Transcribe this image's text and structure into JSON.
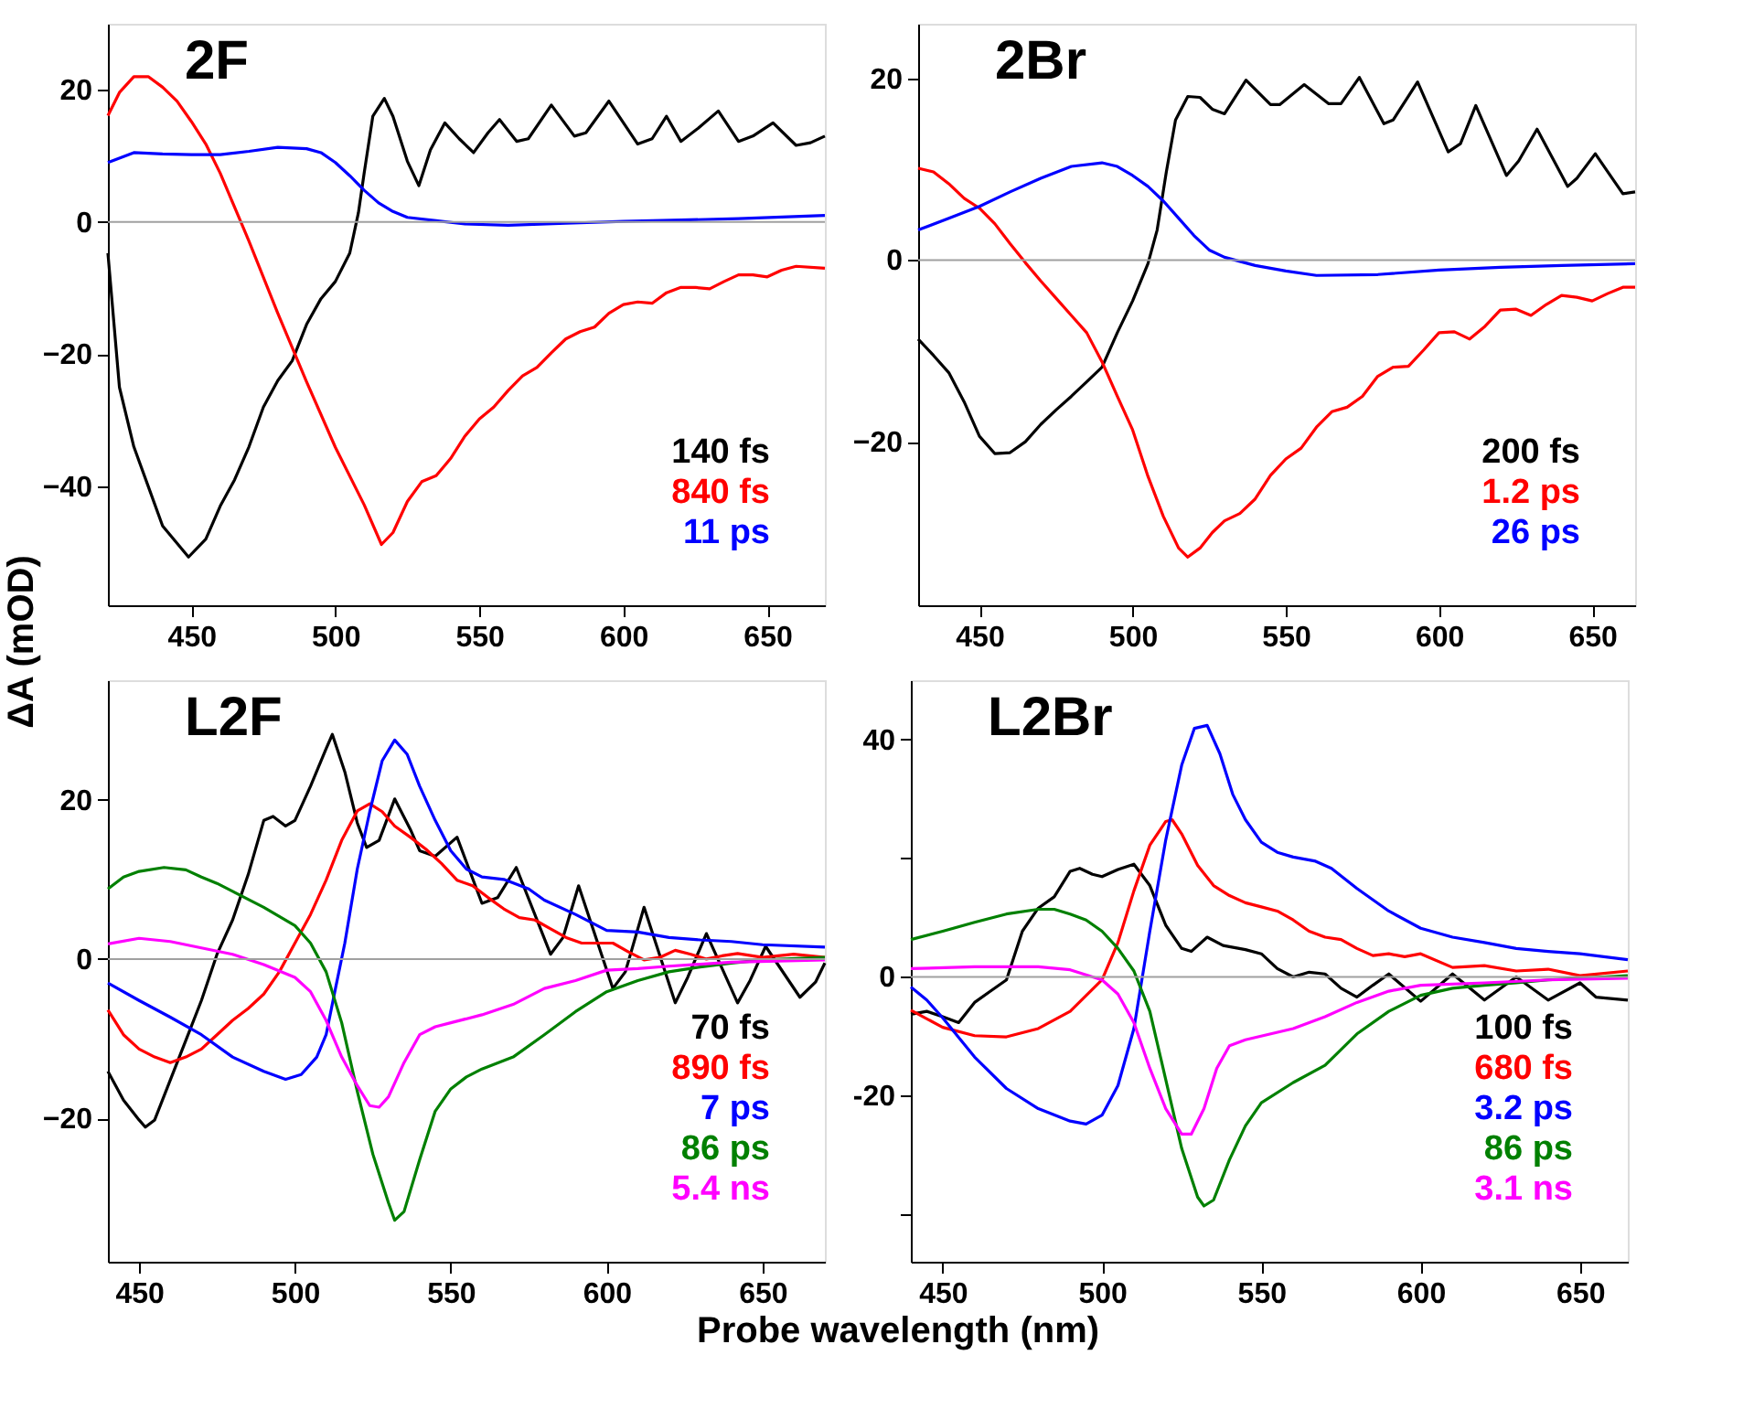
{
  "chart_data": [
    {
      "type": "line",
      "title": "2F",
      "ylabel": "ΔA (mOD)",
      "xlim": [
        421,
        670
      ],
      "ylim": [
        -58,
        30
      ],
      "xticks": [
        450,
        500,
        550,
        600,
        650
      ],
      "yticks": [
        20,
        0,
        -20,
        -40
      ],
      "grid": false,
      "legend": "bottom right",
      "line_style": "solid",
      "ref_lines": [
        {
          "axis": "y",
          "value": 0,
          "color": "#a0a0a0"
        }
      ],
      "series": [
        {
          "name": "140 fs",
          "color": "#000000",
          "x": [
            421,
            425,
            430,
            435,
            440,
            449,
            455,
            460,
            465,
            470,
            475,
            480,
            485,
            490,
            495,
            500,
            505,
            508,
            510,
            513,
            517,
            520,
            525,
            529,
            533,
            538,
            543,
            548,
            553,
            557,
            563,
            567,
            575,
            583,
            587,
            595,
            605,
            610,
            615,
            620,
            626,
            633,
            640,
            645,
            652,
            660,
            665,
            670
          ],
          "values": [
            -4.7,
            -25,
            -34,
            -40,
            -46,
            -50.7,
            -48,
            -43,
            -39,
            -34,
            -28,
            -24,
            -21,
            -15.5,
            -11.6,
            -9,
            -4.7,
            1.4,
            7.4,
            16,
            18.7,
            16,
            9.2,
            5.5,
            10.9,
            15,
            12.6,
            10.5,
            13.5,
            15.5,
            12.2,
            12.6,
            17.7,
            13,
            13.5,
            18.3,
            11.8,
            12.6,
            16,
            12.2,
            14.2,
            16.8,
            12.2,
            13,
            15,
            11.6,
            12,
            13
          ]
        },
        {
          "name": "840 fs",
          "color": "#ff0000",
          "x": [
            421,
            425,
            430,
            435,
            440,
            445,
            450,
            455,
            460,
            470,
            480,
            490,
            500,
            510,
            516,
            520,
            525,
            530,
            535,
            540,
            545,
            550,
            555,
            560,
            565,
            570,
            575,
            580,
            585,
            590,
            595,
            600,
            605,
            610,
            615,
            620,
            625,
            630,
            635,
            640,
            645,
            650,
            655,
            660,
            670
          ],
          "values": [
            16.1,
            19.6,
            22,
            22,
            20.4,
            18.3,
            15.2,
            11.8,
            7.4,
            -2.9,
            -13.8,
            -24.2,
            -34.1,
            -42.8,
            -48.8,
            -47,
            -42.3,
            -39.3,
            -38.4,
            -35.8,
            -32.4,
            -29.8,
            -28,
            -25.5,
            -23.3,
            -22,
            -19.8,
            -17.7,
            -16.6,
            -15.9,
            -13.8,
            -12.5,
            -12.1,
            -12.3,
            -10.7,
            -9.9,
            -9.9,
            -10.1,
            -9,
            -8,
            -8,
            -8.3,
            -7.3,
            -6.7,
            -7
          ]
        },
        {
          "name": "11 ps",
          "color": "#0000ff",
          "x": [
            421,
            430,
            440,
            450,
            460,
            470,
            480,
            490,
            495,
            500,
            505,
            510,
            515,
            520,
            525,
            535,
            545,
            560,
            580,
            600,
            620,
            640,
            670
          ],
          "values": [
            9,
            10.5,
            10.3,
            10.2,
            10.2,
            10.7,
            11.3,
            11.1,
            10.5,
            9,
            7,
            4.8,
            2.9,
            1.6,
            0.7,
            0.2,
            -0.3,
            -0.5,
            -0.2,
            0.1,
            0.3,
            0.5,
            1
          ]
        }
      ]
    },
    {
      "type": "line",
      "title": "2Br",
      "xlim": [
        430,
        664
      ],
      "ylim": [
        -38,
        26
      ],
      "xticks": [
        450,
        500,
        550,
        600,
        650
      ],
      "yticks": [
        20,
        0,
        -20
      ],
      "grid": false,
      "legend": "bottom right",
      "line_style": "solid",
      "ref_lines": [
        {
          "axis": "y",
          "value": 0,
          "color": "#a0a0a0"
        }
      ],
      "series": [
        {
          "name": "200 fs",
          "color": "#000000",
          "x": [
            430,
            435,
            440,
            445,
            450,
            455,
            460,
            465,
            470,
            475,
            480,
            485,
            490,
            495,
            500,
            505,
            508,
            511,
            514,
            518,
            522,
            526,
            530,
            537,
            545,
            548,
            556,
            564,
            568,
            574,
            582,
            585,
            593,
            603,
            607,
            612,
            622,
            626,
            632,
            642,
            645,
            651,
            660,
            664
          ],
          "values": [
            -8.7,
            -10.5,
            -12.4,
            -15.6,
            -19.4,
            -21.3,
            -21.2,
            -20,
            -18.1,
            -16.5,
            -15,
            -13.4,
            -11.8,
            -8,
            -4.5,
            -0.4,
            3.3,
            9.7,
            15.4,
            18,
            17.9,
            16.6,
            16.1,
            19.8,
            17.1,
            17.1,
            19.3,
            17.2,
            17.2,
            20.1,
            15,
            15.4,
            19.6,
            11.9,
            12.8,
            17,
            9.3,
            10.9,
            14.4,
            8.1,
            9,
            11.7,
            7.3,
            7.5
          ]
        },
        {
          "name": "1.2 ps",
          "color": "#ff0000",
          "x": [
            430,
            435,
            440,
            445,
            450,
            455,
            460,
            465,
            470,
            475,
            480,
            485,
            490,
            495,
            500,
            505,
            510,
            515,
            518,
            522,
            526,
            530,
            535,
            540,
            545,
            550,
            555,
            560,
            565,
            570,
            575,
            580,
            585,
            590,
            595,
            600,
            605,
            610,
            615,
            620,
            625,
            630,
            635,
            640,
            645,
            650,
            655,
            660,
            664
          ],
          "values": [
            10.1,
            9.7,
            8.4,
            6.8,
            5.7,
            4,
            1.8,
            -0.3,
            -2.3,
            -4.2,
            -6.1,
            -8,
            -11.2,
            -15,
            -18.7,
            -23.8,
            -28.2,
            -31.7,
            -32.7,
            -31.7,
            -30,
            -28.7,
            -27.9,
            -26.3,
            -23.7,
            -21.9,
            -20.7,
            -18.4,
            -16.7,
            -16.2,
            -15,
            -12.8,
            -11.8,
            -11.7,
            -9.9,
            -8,
            -7.9,
            -8.7,
            -7.3,
            -5.5,
            -5.4,
            -6.1,
            -4.9,
            -3.9,
            -4.1,
            -4.5,
            -3.7,
            -3,
            -3
          ]
        },
        {
          "name": "26 ps",
          "color": "#0000ff",
          "x": [
            430,
            440,
            450,
            460,
            470,
            480,
            490,
            495,
            500,
            505,
            510,
            515,
            520,
            525,
            530,
            540,
            550,
            560,
            580,
            600,
            620,
            640,
            664
          ],
          "values": [
            3.3,
            4.6,
            5.9,
            7.5,
            9,
            10.3,
            10.7,
            10.3,
            9.3,
            8.1,
            6.5,
            4.6,
            2.7,
            1.1,
            0.3,
            -0.6,
            -1.2,
            -1.7,
            -1.6,
            -1.1,
            -0.8,
            -0.6,
            -0.4
          ]
        }
      ]
    },
    {
      "type": "line",
      "title": "L2F",
      "xlabel": "Probe wavelength (nm)",
      "xlim": [
        440,
        670
      ],
      "ylim": [
        -38,
        35
      ],
      "xticks": [
        450,
        500,
        550,
        600,
        650
      ],
      "yticks": [
        20,
        0,
        -20
      ],
      "grid": false,
      "legend": "bottom right",
      "line_style": "solid",
      "ref_lines": [
        {
          "axis": "y",
          "value": 0,
          "color": "#a0a0a0"
        }
      ],
      "series": [
        {
          "name": "70 fs",
          "color": "#000000",
          "x": [
            440,
            445,
            450,
            452,
            455,
            460,
            465,
            470,
            475,
            480,
            485,
            490,
            493,
            497,
            500,
            505,
            510,
            512,
            516,
            520,
            523,
            527,
            532,
            537,
            540,
            545,
            552,
            560,
            565,
            571,
            582,
            586,
            591,
            602,
            606,
            612,
            622,
            626,
            632,
            642,
            646,
            651,
            662,
            667,
            670
          ],
          "values": [
            -14.1,
            -17.7,
            -20.2,
            -21.1,
            -20.2,
            -15.2,
            -10.2,
            -5.2,
            0.6,
            4.9,
            10.6,
            17.4,
            17.9,
            16.7,
            17.4,
            21.7,
            26.4,
            28.2,
            23.5,
            17.1,
            14,
            14.9,
            20.1,
            16.3,
            13.6,
            12.9,
            15.3,
            7,
            7.7,
            11.5,
            0.6,
            2.7,
            9.2,
            -3.7,
            -1.6,
            6.5,
            -5.5,
            -2.3,
            3.2,
            -5.5,
            -2.7,
            1.6,
            -4.8,
            -2.9,
            -0.5
          ]
        },
        {
          "name": "890 fs",
          "color": "#ff0000",
          "x": [
            440,
            445,
            450,
            455,
            460,
            465,
            470,
            475,
            480,
            485,
            490,
            495,
            500,
            505,
            510,
            515,
            520,
            524,
            528,
            532,
            537,
            542,
            547,
            552,
            557,
            562,
            567,
            572,
            577,
            582,
            587,
            592,
            597,
            602,
            607,
            612,
            617,
            622,
            627,
            632,
            637,
            642,
            650,
            660,
            670
          ],
          "values": [
            -6.4,
            -9.5,
            -11.3,
            -12.3,
            -13,
            -12.3,
            -11.3,
            -9.5,
            -7.7,
            -6.2,
            -4.4,
            -1.6,
            2,
            5.6,
            9.9,
            14.9,
            18.6,
            19.5,
            18.5,
            16.7,
            15.3,
            13.8,
            12,
            9.9,
            9.2,
            7.7,
            6.3,
            5.2,
            4.9,
            3.8,
            2.7,
            2,
            2,
            2,
            0.9,
            -0.1,
            0.2,
            1.1,
            0.6,
            0,
            0.4,
            0.7,
            0.2,
            0.6,
            0.2
          ]
        },
        {
          "name": "7 ps",
          "color": "#0000ff",
          "x": [
            440,
            450,
            460,
            470,
            480,
            490,
            497,
            502,
            507,
            510,
            513,
            516,
            520,
            524,
            528,
            532,
            536,
            540,
            545,
            550,
            555,
            560,
            567,
            575,
            580,
            590,
            600,
            610,
            620,
            630,
            640,
            650,
            670
          ],
          "values": [
            -3,
            -5.2,
            -7.3,
            -9.5,
            -12.3,
            -14.1,
            -15.1,
            -14.5,
            -12.3,
            -9.5,
            -3.7,
            2,
            11.3,
            18.5,
            24.9,
            27.5,
            25.7,
            21.7,
            17.4,
            13.6,
            11.3,
            10.3,
            10,
            8.8,
            7.4,
            5.6,
            3.6,
            3.4,
            2.7,
            2.4,
            2.2,
            1.8,
            1.5
          ]
        },
        {
          "name": "86 ps",
          "color": "#008000",
          "x": [
            440,
            445,
            450,
            458,
            465,
            470,
            475,
            480,
            490,
            500,
            505,
            510,
            515,
            520,
            525,
            530,
            532,
            535,
            540,
            545,
            550,
            555,
            560,
            570,
            580,
            590,
            600,
            610,
            620,
            630,
            640,
            650,
            670
          ],
          "values": [
            8.8,
            10.3,
            11,
            11.5,
            11.2,
            10.3,
            9.5,
            8.5,
            6.5,
            4.2,
            2,
            -1.6,
            -8,
            -16.6,
            -24.5,
            -30.6,
            -32.8,
            -31.7,
            -25.2,
            -19.1,
            -16.3,
            -14.8,
            -13.8,
            -12.3,
            -9.5,
            -6.6,
            -4.1,
            -2.7,
            -1.6,
            -1,
            -0.5,
            -0.1,
            0.2
          ]
        },
        {
          "name": "5.4 ns",
          "color": "#ff00ff",
          "x": [
            440,
            450,
            460,
            470,
            480,
            490,
            500,
            505,
            510,
            515,
            520,
            524,
            527,
            530,
            535,
            540,
            545,
            550,
            560,
            570,
            580,
            590,
            600,
            610,
            620,
            640,
            670
          ],
          "values": [
            1.9,
            2.6,
            2.2,
            1.4,
            0.6,
            -0.7,
            -2.3,
            -4.1,
            -7.7,
            -12.3,
            -15.9,
            -18.4,
            -18.6,
            -17.3,
            -13,
            -9.5,
            -8.5,
            -8,
            -7,
            -5.7,
            -3.7,
            -2.7,
            -1.4,
            -1.2,
            -0.9,
            -0.4,
            -0.1
          ]
        }
      ]
    },
    {
      "type": "line",
      "title": "L2Br",
      "xlim": [
        440,
        665
      ],
      "ylim": [
        -48,
        50
      ],
      "xticks": [
        450,
        500,
        550,
        600,
        650
      ],
      "yticks": [
        40,
        {
          "value": 20,
          "label": null
        },
        0,
        -20,
        {
          "value": -40,
          "label": null
        }
      ],
      "grid": false,
      "legend": "bottom right",
      "line_style": "solid",
      "ref_lines": [
        {
          "axis": "y",
          "value": 0,
          "color": "#a0a0a0"
        }
      ],
      "series": [
        {
          "name": "100 fs",
          "color": "#000000",
          "x": [
            440,
            445,
            450,
            455,
            460,
            465,
            470,
            475,
            480,
            485,
            490,
            493,
            497,
            500,
            505,
            510,
            515,
            520,
            525,
            528,
            533,
            538,
            545,
            550,
            555,
            560,
            565,
            570,
            575,
            580,
            585,
            590,
            600,
            610,
            620,
            630,
            640,
            650,
            655,
            665
          ],
          "values": [
            -6.3,
            -5.8,
            -6.7,
            -7.7,
            -4.3,
            -2.4,
            -0.5,
            7.7,
            11.6,
            13.5,
            17.8,
            18.3,
            17.3,
            16.9,
            18.1,
            19,
            15.4,
            8.7,
            4.8,
            4.3,
            6.7,
            5.3,
            4.6,
            3.9,
            1.4,
            0,
            0.8,
            0.5,
            -1.9,
            -3.4,
            -1.4,
            0.5,
            -4.1,
            0.5,
            -3.9,
            0,
            -3.9,
            -1,
            -3.4,
            -3.9
          ]
        },
        {
          "name": "680 fs",
          "color": "#ff0000",
          "x": [
            440,
            450,
            460,
            470,
            480,
            490,
            500,
            505,
            510,
            515,
            520,
            522,
            525,
            530,
            535,
            540,
            545,
            550,
            555,
            560,
            565,
            570,
            575,
            580,
            585,
            590,
            595,
            600,
            610,
            620,
            630,
            640,
            650,
            665
          ],
          "values": [
            -5.6,
            -8.5,
            -9.9,
            -10.1,
            -8.7,
            -5.8,
            -0.5,
            5.8,
            14.5,
            22.2,
            26.2,
            26.5,
            24.1,
            18.8,
            15.4,
            13.7,
            12.5,
            11.8,
            11.1,
            9.6,
            7.7,
            6.7,
            6.3,
            4.8,
            3.6,
            3.9,
            3.4,
            3.9,
            1.6,
            1.9,
            1,
            1.3,
            0.2,
            1
          ]
        },
        {
          "name": "3.2 ps",
          "color": "#0000ff",
          "x": [
            440,
            445,
            450,
            460,
            470,
            480,
            490,
            495,
            500,
            505,
            510,
            515,
            520,
            525,
            529,
            533,
            537,
            541,
            545,
            550,
            555,
            560,
            567,
            572,
            580,
            590,
            600,
            610,
            620,
            630,
            640,
            650,
            665
          ],
          "values": [
            -1.7,
            -3.9,
            -6.9,
            -13.5,
            -18.8,
            -22.2,
            -24.3,
            -24.8,
            -23.3,
            -18.3,
            -8.7,
            7.7,
            23.1,
            35.7,
            41.9,
            42.4,
            37.6,
            30.8,
            26.5,
            22.7,
            21,
            20.2,
            19.5,
            18.3,
            14.9,
            11.1,
            8.2,
            6.7,
            5.8,
            4.8,
            4.3,
            3.9,
            2.9
          ]
        },
        {
          "name": "86 ps",
          "color": "#008000",
          "x": [
            440,
            450,
            460,
            470,
            480,
            485,
            490,
            495,
            500,
            505,
            510,
            515,
            520,
            525,
            530,
            532,
            535,
            540,
            545,
            550,
            560,
            570,
            580,
            590,
            600,
            610,
            620,
            630,
            640,
            665
          ],
          "values": [
            6.3,
            7.7,
            9.2,
            10.6,
            11.4,
            11.4,
            10.6,
            9.6,
            7.7,
            4.8,
            1,
            -5.8,
            -17.3,
            -28.9,
            -37.1,
            -38.6,
            -37.6,
            -30.8,
            -25.1,
            -21.2,
            -17.8,
            -14.9,
            -9.6,
            -5.8,
            -3.1,
            -1.9,
            -1.4,
            -1,
            -0.5,
            0.2
          ]
        },
        {
          "name": "3.1 ns",
          "color": "#ff00ff",
          "x": [
            440,
            460,
            480,
            490,
            500,
            505,
            510,
            515,
            520,
            525,
            528,
            532,
            536,
            540,
            545,
            560,
            570,
            580,
            590,
            600,
            620,
            640,
            665
          ],
          "values": [
            1.4,
            1.7,
            1.7,
            1.2,
            -0.5,
            -2.9,
            -7.7,
            -15.4,
            -22.2,
            -26.5,
            -26.5,
            -22.2,
            -15.4,
            -11.6,
            -10.6,
            -8.7,
            -6.7,
            -4.3,
            -2.4,
            -1.4,
            -1,
            -0.5,
            -0.2
          ]
        }
      ]
    }
  ]
}
